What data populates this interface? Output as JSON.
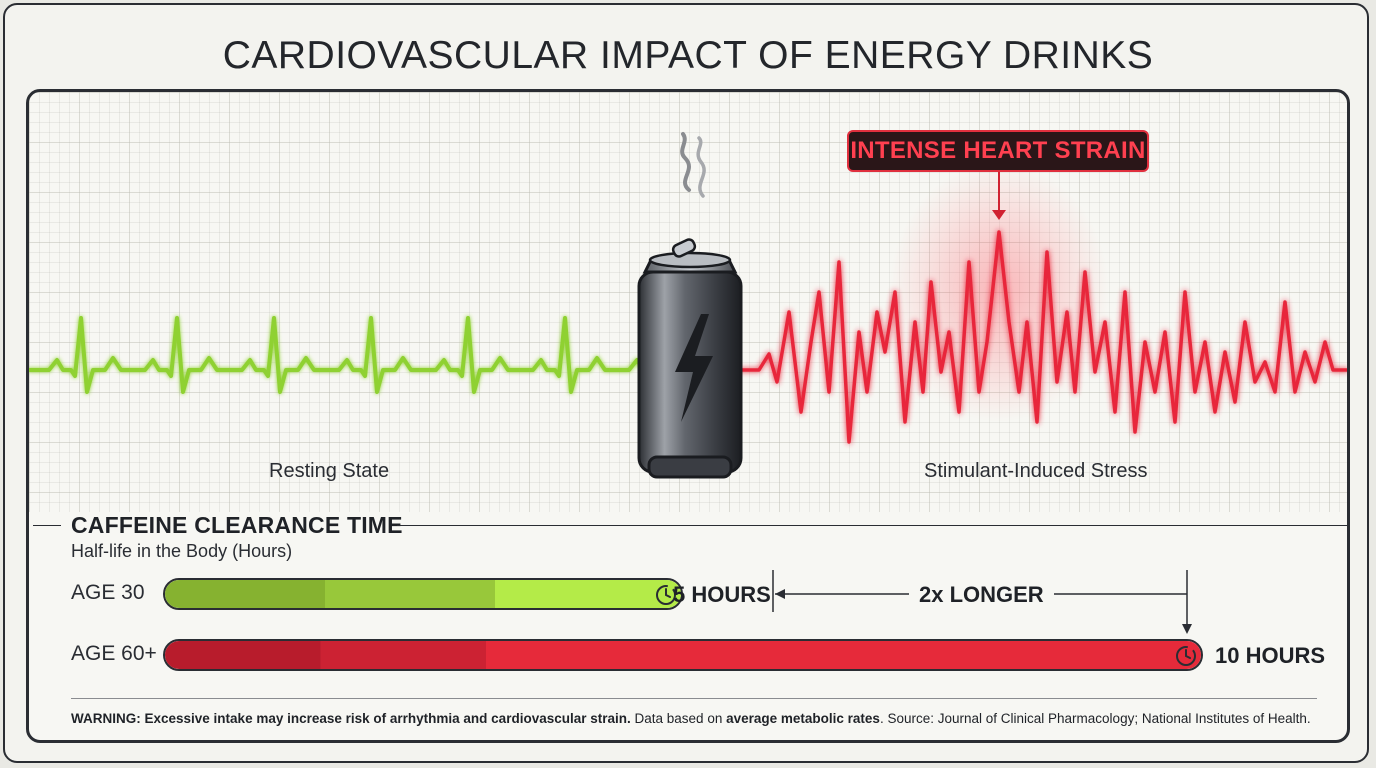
{
  "title": "CARDIOVASCULAR IMPACT OF ENERGY DRINKS",
  "ecg": {
    "callout": "INTENSE HEART STRAIN",
    "resting_label": "Resting State",
    "stress_label": "Stimulant-Induced Stress",
    "resting_color": "#8fd130",
    "stress_color": "#e8283a"
  },
  "can": {
    "icon": "energy-drink-can-icon",
    "symbol": "lightning-bolt-icon"
  },
  "clearance": {
    "title": "CAFFEINE CLEARANCE TIME",
    "subtitle": "Half-life in the Body (Hours)",
    "axis_max_hours": 10,
    "rows": [
      {
        "label": "AGE 30",
        "hours": 5,
        "value_label": "5 HOURS",
        "color": "#b4eb48"
      },
      {
        "label": "AGE 60+",
        "hours": 10,
        "value_label": "10 HOURS",
        "color": "#e62a3a"
      }
    ],
    "comparison": "2x LONGER"
  },
  "footer": {
    "warning_lead": "WARNING: Excessive intake may increase risk of arrhythmia and cardiovascular strain.",
    "data_prefix": "Data based on",
    "data_bold": "average metabolic rates",
    "source": ". Source: Journal of Clinical Pharmacology; National Institutes of Health."
  }
}
